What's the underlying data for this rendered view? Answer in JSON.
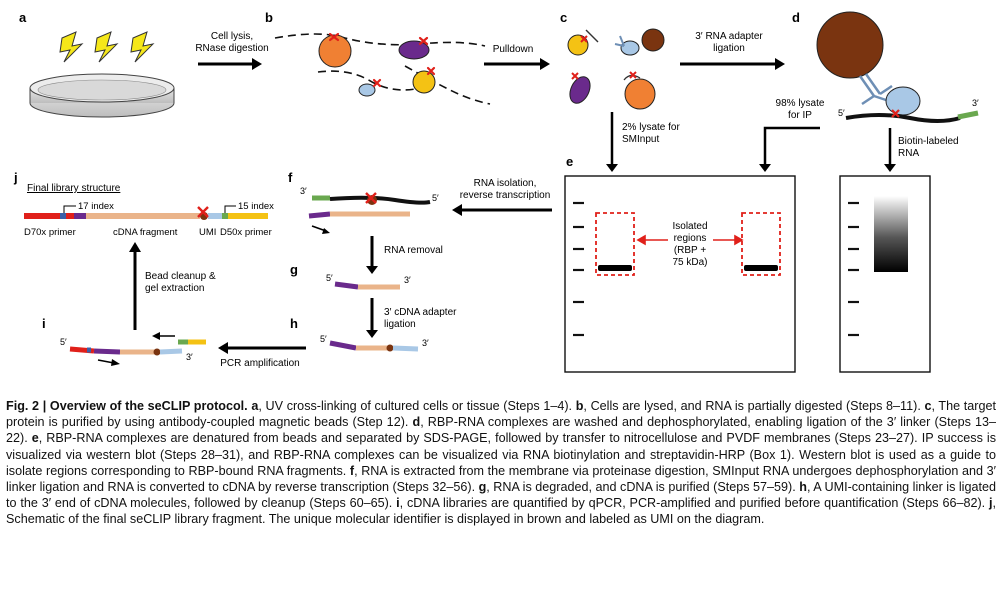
{
  "figure": {
    "panels": {
      "a": "a",
      "b": "b",
      "c": "c",
      "d": "d",
      "e": "e",
      "f": "f",
      "g": "g",
      "h": "h",
      "i": "i",
      "j": "j"
    },
    "arrows": {
      "cell_lysis": "Cell lysis,",
      "rnase": "RNase digestion",
      "pulldown": "Pulldown",
      "adapter_ligation_1": "3′ RNA adapter",
      "adapter_ligation_2": "ligation",
      "smi_1": "2% lysate for",
      "smi_2": "SMInput",
      "ip_1": "98% lysate",
      "ip_2": "for IP",
      "biotin_1": "Biotin-labeled",
      "biotin_2": "RNA",
      "rna_iso_1": "RNA isolation,",
      "rna_iso_2": "reverse transcription",
      "rna_removal": "RNA removal",
      "cdna_adapter_1": "3′ cDNA adapter",
      "cdna_adapter_2": "ligation",
      "pcr": "PCR amplification",
      "bead_1": "Bead cleanup &",
      "bead_2": "gel extraction"
    },
    "ends": {
      "five": "5′",
      "three": "3′"
    },
    "isolated": [
      "Isolated",
      "regions",
      "(RBP +",
      "75 kDa)"
    ],
    "library": {
      "title": "Final library structure",
      "index17": "17 index",
      "index15": "15 index",
      "d70x": "D70x primer",
      "cdna": "cDNA fragment",
      "umi": "UMI",
      "d50x": "D50x primer"
    },
    "colors": {
      "bead": "#7a3410",
      "orange": "#f08033",
      "purple": "#6a2a8c",
      "yellow": "#f4c214",
      "lightblue": "#a9c8e6",
      "red": "#e0201a",
      "green": "#6aa84f",
      "tan": "#eab48a",
      "lightning": "#f5e71a"
    }
  },
  "caption": {
    "heading": "Fig. 2 | Overview of the seCLIP protocol.",
    "segments": [
      {
        "b": "a",
        "t": ", UV cross-linking of cultured cells or tissue (Steps 1–4). "
      },
      {
        "b": "b",
        "t": ", Cells are lysed, and RNA is partially digested (Steps 8–11). "
      },
      {
        "b": "c",
        "t": ", The target protein is purified by using antibody-coupled magnetic beads (Step 12). "
      },
      {
        "b": "d",
        "t": ", RBP-RNA complexes are washed and dephosphorylated, enabling ligation of the 3′ linker (Steps 13–22). "
      },
      {
        "b": "e",
        "t": ", RBP-RNA complexes are denatured from beads and separated by SDS-PAGE, followed by transfer to nitrocellulose and PVDF membranes (Steps 23–27). IP success is visualized via western blot (Steps 28–31), and RBP-RNA complexes can be visualized via RNA biotinylation and streptavidin-HRP (Box 1). Western blot is used as a guide to isolate regions corresponding to RBP-bound RNA fragments. "
      },
      {
        "b": "f",
        "t": ", RNA is extracted from the membrane via proteinase digestion, SMInput RNA undergoes dephosphorylation and 3′ linker ligation and RNA is converted to cDNA by reverse transcription (Steps 32–56). "
      },
      {
        "b": "g",
        "t": ", RNA is degraded, and cDNA is purified (Steps 57–59). "
      },
      {
        "b": "h",
        "t": ", A UMI-containing linker is ligated to the 3′ end of cDNA molecules, followed by cleanup (Steps 60–65). "
      },
      {
        "b": "i",
        "t": ", cDNA libraries are quantified by qPCR, PCR-amplified and purified before quantification (Steps 66–82). "
      },
      {
        "b": "j",
        "t": ", Schematic of the final seCLIP library fragment. The unique molecular identifier is displayed in brown and labeled as UMI on the diagram."
      }
    ]
  }
}
